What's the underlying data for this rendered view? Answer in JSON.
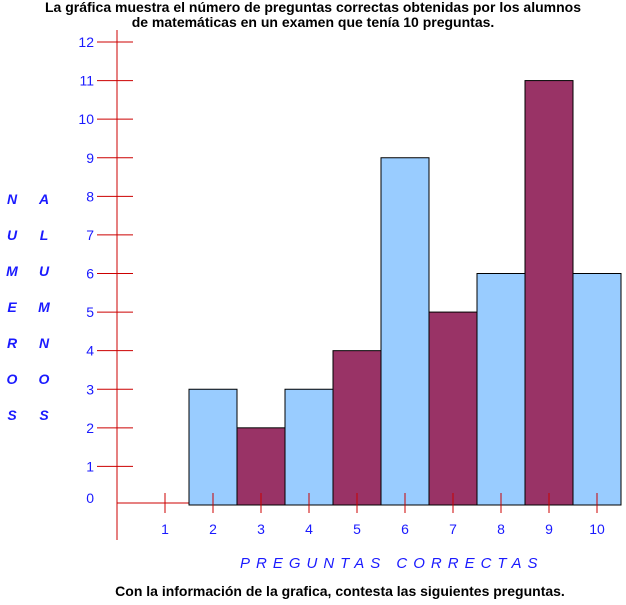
{
  "title_line1": "La gráfica muestra el número de preguntas correctas obtenidas por los alumnos",
  "title_line2": "de matemáticas en un examen que tenía 10 preguntas.",
  "footer": "Con la información de  la grafica, contesta las siguientes preguntas.",
  "colors": {
    "light": "#99ccff",
    "dark": "#993366",
    "axis": "#cc0000",
    "text": "#1a1aff"
  },
  "chart_data": {
    "type": "bar",
    "xlabel": "PREGUNTAS   CORRECTAS",
    "ylabel_col1": [
      "N",
      "U",
      "M",
      "E",
      "R",
      "O",
      "S"
    ],
    "ylabel_col2": [
      "A",
      "L",
      "U",
      "M",
      "N",
      "O",
      "S"
    ],
    "categories": [
      "1",
      "2",
      "3",
      "4",
      "5",
      "6",
      "7",
      "8",
      "9",
      "10"
    ],
    "values": [
      0,
      3,
      2,
      3,
      4,
      9,
      5,
      6,
      11,
      6
    ],
    "bar_colors": [
      "light",
      "light",
      "dark",
      "light",
      "dark",
      "light",
      "dark",
      "light",
      "dark",
      "light"
    ],
    "yticks": [
      0,
      1,
      2,
      3,
      4,
      5,
      6,
      7,
      8,
      9,
      10,
      11,
      12
    ],
    "ylim": [
      0,
      12
    ]
  }
}
